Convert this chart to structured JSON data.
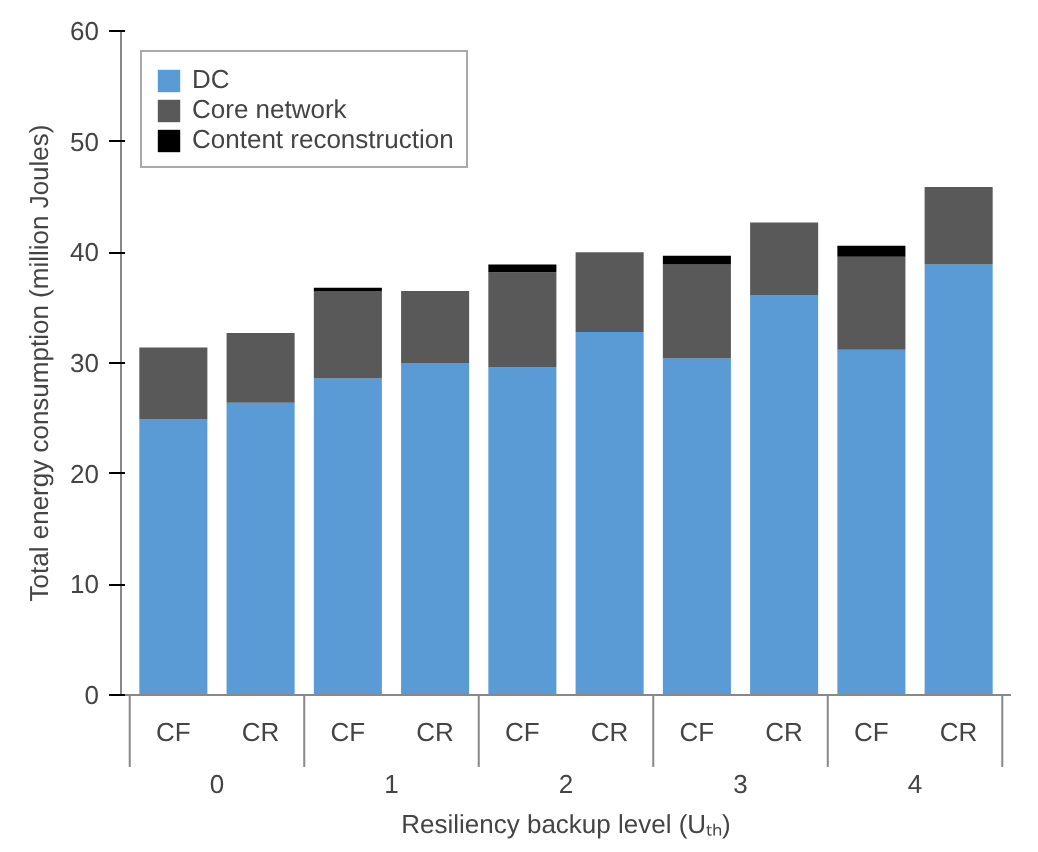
{
  "chart_data": {
    "type": "bar",
    "stacked": true,
    "categories": [
      "CF",
      "CR",
      "CF",
      "CR",
      "CF",
      "CR",
      "CF",
      "CR",
      "CF",
      "CR"
    ],
    "series": [
      {
        "name": "DC",
        "color": "#5b9bd5",
        "values": [
          24.9,
          26.4,
          28.6,
          30.0,
          29.6,
          32.8,
          30.4,
          36.1,
          31.2,
          38.9
        ]
      },
      {
        "name": "Core network",
        "color": "#595959",
        "values": [
          6.5,
          6.3,
          7.9,
          6.5,
          8.6,
          7.2,
          8.5,
          6.6,
          8.4,
          7.0
        ]
      },
      {
        "name": "Content reconstruction",
        "color": "#000000",
        "values": [
          null,
          null,
          0.3,
          null,
          0.7,
          null,
          0.8,
          null,
          1.0,
          null
        ]
      }
    ],
    "annotations": [
      "0",
      "1",
      "2",
      "3",
      "4"
    ],
    "xlabel": "Resiliency backup level (Uₜₕ)",
    "ylabel": "Total energy consumption (million Joules)",
    "ylim": [
      0,
      60
    ],
    "yticks": [
      0,
      10,
      20,
      30,
      40,
      50,
      60
    ],
    "grid": false,
    "legend": "top left"
  }
}
